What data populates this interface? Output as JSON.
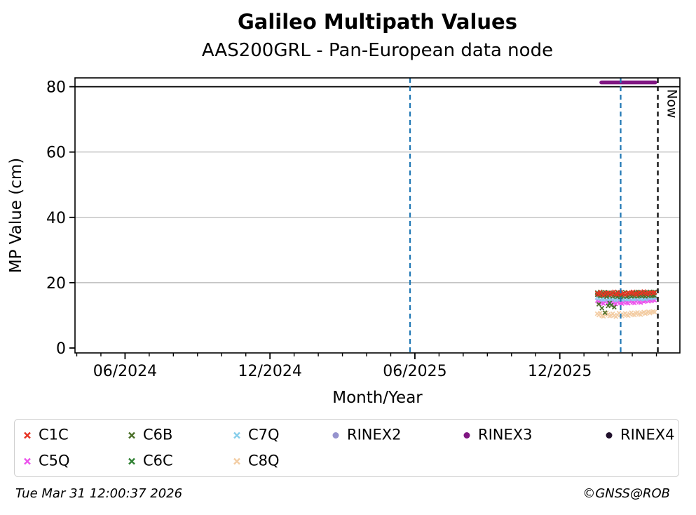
{
  "header": {
    "title": "Galileo Multipath Values",
    "subtitle": "AAS200GRL - Pan-European data node"
  },
  "footer": {
    "timestamp": "Tue Mar 31 12:00:37 2026",
    "copyright": "©GNSS@ROB"
  },
  "colors": {
    "C1C": "#e63323",
    "C5Q": "#ec53ec",
    "C6B": "#4a6f28",
    "C6C": "#2f8032",
    "C7Q": "#87ceeb",
    "C8Q": "#f3cda4",
    "RINEX2": "#9693ce",
    "RINEX3": "#801682",
    "RINEX4": "#20102c",
    "event_line_blue": "#1f77b4",
    "grid_gray": "#b0b0b0",
    "axis_black": "#000000"
  },
  "legend": {
    "rows": [
      [
        {
          "label": "C1C",
          "marker": "x",
          "color": "#e63323"
        },
        {
          "label": "C6B",
          "marker": "x",
          "color": "#4a6f28"
        },
        {
          "label": "C7Q",
          "marker": "x",
          "color": "#87ceeb"
        },
        {
          "label": "RINEX2",
          "marker": "o",
          "color": "#9693ce"
        },
        {
          "label": "RINEX3",
          "marker": "o",
          "color": "#801682"
        },
        {
          "label": "RINEX4",
          "marker": "o",
          "color": "#20102c"
        }
      ],
      [
        {
          "label": "C5Q",
          "marker": "x",
          "color": "#ec53ec"
        },
        {
          "label": "C6C",
          "marker": "x",
          "color": "#2f8032"
        },
        {
          "label": "C8Q",
          "marker": "x",
          "color": "#f3cda4"
        }
      ]
    ]
  },
  "chart_data": {
    "type": "scatter",
    "title": "Galileo Multipath Values",
    "subtitle": "AAS200GRL - Pan-European data node",
    "xlabel": "Month/Year",
    "ylabel": "MP Value (cm)",
    "ylim": [
      -1.7,
      82.7
    ],
    "x_axis_note": "m = months since 2024-04-01; axis spans ~2024-04 to ~2026-05",
    "x_ticks": [
      {
        "m": 2,
        "label": "06/2024"
      },
      {
        "m": 8,
        "label": "12/2024"
      },
      {
        "m": 14,
        "label": "06/2025"
      },
      {
        "m": 20,
        "label": "12/2025"
      }
    ],
    "x_minor_ticks_every_month": true,
    "y_ticks": [
      0,
      20,
      40,
      60,
      80
    ],
    "gridlines_at": [
      20,
      40,
      60
    ],
    "grid": true,
    "legend_position": "below",
    "threshold_line": {
      "value": 80,
      "color": "#000000",
      "style": "solid"
    },
    "event_lines": [
      {
        "m": 13.8,
        "approx_date": "2025-05-26",
        "color": "#1f77b4",
        "style": "dashed"
      },
      {
        "m": 22.52,
        "approx_date": "2026-02-16",
        "color": "#1f77b4",
        "style": "dashed"
      }
    ],
    "now_line": {
      "m": 24.06,
      "label": "Now",
      "color": "#000000",
      "style": "dashed"
    },
    "series_m_start": 21.55,
    "series_m_step": 0.0642,
    "series": [
      {
        "name": "C1C",
        "marker": "x",
        "color": "#e63323",
        "values": [
          16.8,
          16.4,
          17.1,
          16.6,
          16.2,
          16.7,
          17.0,
          16.5,
          16.9,
          16.3,
          16.8,
          17.2,
          16.6,
          16.4,
          16.9,
          17.1,
          16.5,
          16.8,
          16.3,
          16.7,
          17.0,
          16.6,
          16.9,
          17.2,
          16.7,
          16.4,
          16.8,
          17.1,
          16.6,
          16.9,
          17.3,
          16.8,
          16.5,
          17.0,
          16.7,
          17.1,
          16.8,
          17.0
        ]
      },
      {
        "name": "C5Q",
        "marker": "x",
        "color": "#ec53ec",
        "values": [
          14.5,
          14.1,
          14.7,
          13.9,
          13.6,
          14.2,
          14.5,
          14.0,
          13.7,
          14.0,
          14.3,
          13.8,
          13.5,
          14.1,
          14.4,
          13.8,
          13.6,
          14.0,
          14.3,
          13.9,
          13.7,
          14.2,
          14.5,
          14.0,
          13.8,
          14.3,
          14.6,
          14.1,
          13.9,
          14.4,
          14.2,
          14.5,
          14.7,
          14.3,
          14.6,
          14.4,
          14.8,
          14.6
        ]
      },
      {
        "name": "C6B",
        "marker": "x",
        "color": "#4a6f28",
        "values": [
          16.3,
          13.4,
          15.9,
          12.2,
          16.1,
          10.8,
          15.7,
          12.9,
          16.0,
          13.1,
          15.8,
          12.5,
          16.2,
          15.7,
          16.0,
          15.6,
          16.1,
          15.8,
          16.2,
          15.7,
          16.0,
          16.3,
          15.8,
          16.1,
          15.9,
          16.2,
          15.8,
          16.0,
          16.3,
          15.9,
          16.1,
          15.8,
          16.2,
          16.0,
          16.3,
          15.9,
          16.1,
          16.0
        ]
      },
      {
        "name": "C6C",
        "marker": "x",
        "color": "#2f8032",
        "values": [
          17.0,
          16.5,
          17.2,
          16.1,
          16.8,
          17.1,
          16.4,
          16.9,
          13.8,
          16.6,
          17.0,
          16.3,
          16.8,
          17.1,
          16.6,
          16.9,
          16.4,
          16.8,
          17.1,
          16.6,
          16.9,
          16.5,
          16.8,
          17.0,
          16.6,
          16.9,
          17.2,
          16.7,
          17.0,
          16.6,
          16.9,
          17.1,
          16.7,
          17.0,
          17.2,
          16.8,
          17.0,
          17.2
        ]
      },
      {
        "name": "C7Q",
        "marker": "x",
        "color": "#87ceeb",
        "values": [
          15.5,
          15.2,
          15.7,
          15.0,
          14.8,
          15.3,
          15.6,
          15.1,
          14.9,
          15.2,
          15.5,
          15.0,
          14.7,
          15.2,
          15.5,
          15.0,
          14.8,
          15.1,
          15.4,
          15.0,
          14.9,
          15.3,
          15.6,
          15.1,
          15.0,
          15.4,
          15.7,
          15.2,
          15.0,
          15.5,
          15.3,
          15.0,
          15.4,
          15.6,
          15.2,
          15.5,
          15.7,
          15.4
        ]
      },
      {
        "name": "C8Q",
        "marker": "x",
        "color": "#f3cda4",
        "values": [
          10.5,
          10.1,
          10.7,
          9.9,
          9.7,
          10.2,
          10.8,
          10.3,
          9.8,
          10.0,
          10.5,
          9.9,
          9.6,
          10.1,
          10.7,
          10.2,
          9.8,
          10.3,
          10.6,
          10.1,
          9.9,
          10.4,
          10.8,
          10.3,
          10.1,
          10.6,
          10.9,
          10.4,
          10.2,
          10.7,
          11.0,
          10.5,
          10.8,
          11.1,
          10.7,
          11.0,
          11.2,
          11.0
        ]
      },
      {
        "name": "RINEX2",
        "marker": "o",
        "color": "#9693ce",
        "values": []
      },
      {
        "name": "RINEX3",
        "marker": "o",
        "color": "#801682",
        "segment": {
          "m_start": 21.72,
          "m_end": 23.95,
          "value": 81.3
        }
      },
      {
        "name": "RINEX4",
        "marker": "o",
        "color": "#20102c",
        "values": []
      }
    ]
  }
}
